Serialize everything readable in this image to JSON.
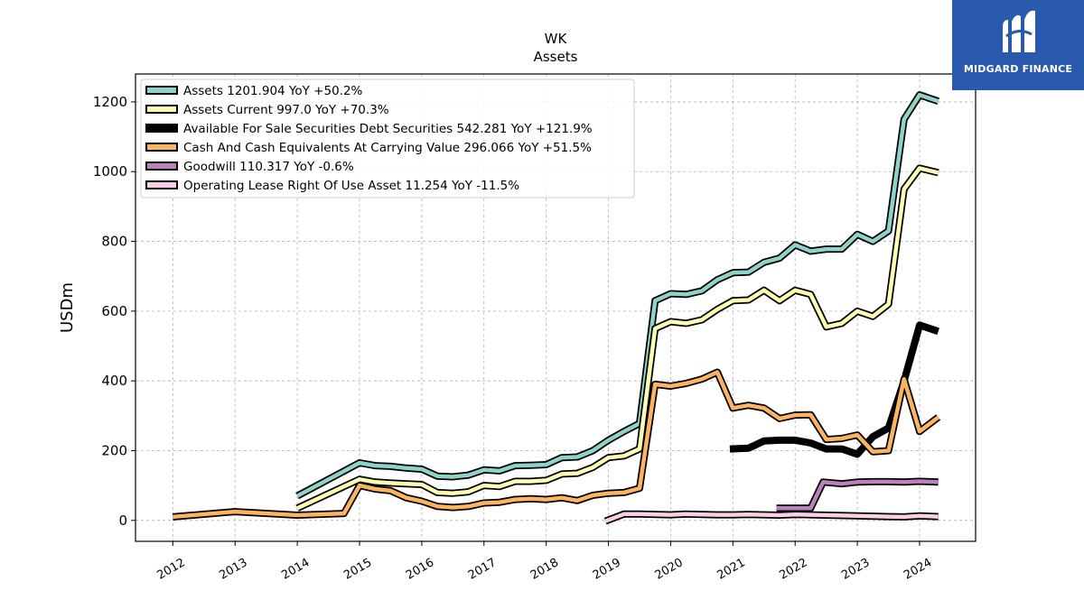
{
  "brand": {
    "name": "MIDGARD FINANCE",
    "color": "#2a5aad"
  },
  "chart_data": {
    "type": "line",
    "title": "WK",
    "subtitle": "Assets",
    "xlabel": "",
    "ylabel": "USDm",
    "ylim": [
      -60,
      1280
    ],
    "xlim": [
      2011.4,
      2024.9
    ],
    "yticks": [
      0,
      200,
      400,
      600,
      800,
      1000,
      1200
    ],
    "xticks": [
      2012,
      2013,
      2014,
      2015,
      2016,
      2017,
      2018,
      2019,
      2020,
      2021,
      2022,
      2023,
      2024
    ],
    "grid": true,
    "legend_position": "top-left",
    "series": [
      {
        "name": "Assets",
        "legend": "Assets  1201.904 YoY +50.2%",
        "color": "#8dd3c7",
        "style": "outlined",
        "points": [
          [
            2014.0,
            70
          ],
          [
            2015.0,
            165
          ],
          [
            2015.25,
            157
          ],
          [
            2015.5,
            155
          ],
          [
            2015.75,
            150
          ],
          [
            2016.0,
            147
          ],
          [
            2016.25,
            127
          ],
          [
            2016.5,
            125
          ],
          [
            2016.75,
            130
          ],
          [
            2017.0,
            145
          ],
          [
            2017.25,
            142
          ],
          [
            2017.5,
            157
          ],
          [
            2017.75,
            158
          ],
          [
            2018.0,
            160
          ],
          [
            2018.25,
            180
          ],
          [
            2018.5,
            182
          ],
          [
            2018.75,
            200
          ],
          [
            2019.0,
            230
          ],
          [
            2019.25,
            255
          ],
          [
            2019.5,
            278
          ],
          [
            2019.75,
            630
          ],
          [
            2020.0,
            650
          ],
          [
            2020.25,
            648
          ],
          [
            2020.5,
            658
          ],
          [
            2020.75,
            690
          ],
          [
            2021.0,
            710
          ],
          [
            2021.25,
            712
          ],
          [
            2021.5,
            740
          ],
          [
            2021.75,
            752
          ],
          [
            2022.0,
            790
          ],
          [
            2022.25,
            772
          ],
          [
            2022.5,
            778
          ],
          [
            2022.75,
            778
          ],
          [
            2023.0,
            820
          ],
          [
            2023.25,
            800
          ],
          [
            2023.5,
            830
          ],
          [
            2023.75,
            1150
          ],
          [
            2024.0,
            1220
          ],
          [
            2024.3,
            1202
          ]
        ]
      },
      {
        "name": "Assets Current",
        "legend": "Assets Current  997.0 YoY +70.3%",
        "color": "#ffffb3",
        "style": "outlined",
        "points": [
          [
            2014.0,
            35
          ],
          [
            2015.0,
            118
          ],
          [
            2015.25,
            110
          ],
          [
            2015.5,
            107
          ],
          [
            2015.75,
            105
          ],
          [
            2016.0,
            103
          ],
          [
            2016.25,
            80
          ],
          [
            2016.5,
            78
          ],
          [
            2016.75,
            82
          ],
          [
            2017.0,
            100
          ],
          [
            2017.25,
            97
          ],
          [
            2017.5,
            112
          ],
          [
            2017.75,
            112
          ],
          [
            2018.0,
            115
          ],
          [
            2018.25,
            133
          ],
          [
            2018.5,
            135
          ],
          [
            2018.75,
            152
          ],
          [
            2019.0,
            180
          ],
          [
            2019.25,
            185
          ],
          [
            2019.5,
            205
          ],
          [
            2019.75,
            550
          ],
          [
            2020.0,
            570
          ],
          [
            2020.25,
            565
          ],
          [
            2020.5,
            575
          ],
          [
            2020.75,
            605
          ],
          [
            2021.0,
            630
          ],
          [
            2021.25,
            632
          ],
          [
            2021.5,
            660
          ],
          [
            2021.75,
            630
          ],
          [
            2022.0,
            660
          ],
          [
            2022.25,
            648
          ],
          [
            2022.5,
            555
          ],
          [
            2022.75,
            565
          ],
          [
            2023.0,
            600
          ],
          [
            2023.25,
            585
          ],
          [
            2023.5,
            620
          ],
          [
            2023.75,
            950
          ],
          [
            2024.0,
            1010
          ],
          [
            2024.3,
            997
          ]
        ]
      },
      {
        "name": "Available For Sale Securities Debt Securities",
        "legend": "Available For Sale Securities Debt Securities  542.281 YoY +121.9%",
        "color": "#000000",
        "style": "solid",
        "points": [
          [
            2020.95,
            205
          ],
          [
            2021.25,
            207
          ],
          [
            2021.5,
            228
          ],
          [
            2021.75,
            230
          ],
          [
            2022.0,
            230
          ],
          [
            2022.25,
            222
          ],
          [
            2022.5,
            205
          ],
          [
            2022.75,
            205
          ],
          [
            2023.0,
            190
          ],
          [
            2023.25,
            240
          ],
          [
            2023.5,
            265
          ],
          [
            2023.75,
            400
          ],
          [
            2024.0,
            560
          ],
          [
            2024.3,
            542
          ]
        ]
      },
      {
        "name": "Cash And Cash Equivalents At Carrying Value",
        "legend": "Cash And Cash Equivalents At Carrying Value  296.066 YoY +51.5%",
        "color": "#fdb462",
        "style": "outlined",
        "points": [
          [
            2012.0,
            10
          ],
          [
            2013.0,
            25
          ],
          [
            2014.0,
            15
          ],
          [
            2014.75,
            20
          ],
          [
            2015.0,
            100
          ],
          [
            2015.25,
            90
          ],
          [
            2015.5,
            85
          ],
          [
            2015.75,
            65
          ],
          [
            2016.0,
            55
          ],
          [
            2016.25,
            40
          ],
          [
            2016.5,
            37
          ],
          [
            2016.75,
            40
          ],
          [
            2017.0,
            50
          ],
          [
            2017.25,
            52
          ],
          [
            2017.5,
            60
          ],
          [
            2017.75,
            62
          ],
          [
            2018.0,
            60
          ],
          [
            2018.25,
            65
          ],
          [
            2018.5,
            57
          ],
          [
            2018.75,
            72
          ],
          [
            2019.0,
            78
          ],
          [
            2019.25,
            80
          ],
          [
            2019.5,
            92
          ],
          [
            2019.75,
            390
          ],
          [
            2020.0,
            385
          ],
          [
            2020.25,
            393
          ],
          [
            2020.5,
            405
          ],
          [
            2020.75,
            425
          ],
          [
            2021.0,
            322
          ],
          [
            2021.25,
            330
          ],
          [
            2021.5,
            322
          ],
          [
            2021.75,
            292
          ],
          [
            2022.0,
            302
          ],
          [
            2022.25,
            303
          ],
          [
            2022.5,
            232
          ],
          [
            2022.75,
            235
          ],
          [
            2023.0,
            245
          ],
          [
            2023.25,
            197
          ],
          [
            2023.5,
            200
          ],
          [
            2023.75,
            405
          ],
          [
            2024.0,
            255
          ],
          [
            2024.3,
            296
          ]
        ]
      },
      {
        "name": "Goodwill",
        "legend": "Goodwill  110.317 YoY -0.6%",
        "color": "#bc80bd",
        "style": "outlined",
        "points": [
          [
            2021.7,
            35
          ],
          [
            2022.25,
            35
          ],
          [
            2022.45,
            110
          ],
          [
            2022.75,
            105
          ],
          [
            2023.0,
            110
          ],
          [
            2023.25,
            111
          ],
          [
            2023.5,
            111
          ],
          [
            2023.75,
            110
          ],
          [
            2024.0,
            112
          ],
          [
            2024.3,
            110
          ]
        ]
      },
      {
        "name": "Operating Lease Right Of Use Asset",
        "legend": "Operating Lease Right Of Use Asset  11.254 YoY -11.5%",
        "color": "#fccde5",
        "style": "outlined",
        "points": [
          [
            2018.95,
            -2
          ],
          [
            2019.25,
            18
          ],
          [
            2019.5,
            18
          ],
          [
            2020.0,
            16
          ],
          [
            2020.25,
            18
          ],
          [
            2020.75,
            16
          ],
          [
            2021.0,
            16
          ],
          [
            2021.25,
            17
          ],
          [
            2021.5,
            16
          ],
          [
            2021.75,
            15
          ],
          [
            2022.0,
            17
          ],
          [
            2022.25,
            16
          ],
          [
            2022.5,
            15
          ],
          [
            2023.0,
            13
          ],
          [
            2023.5,
            11
          ],
          [
            2023.75,
            10
          ],
          [
            2024.0,
            13
          ],
          [
            2024.3,
            11
          ]
        ]
      }
    ]
  }
}
